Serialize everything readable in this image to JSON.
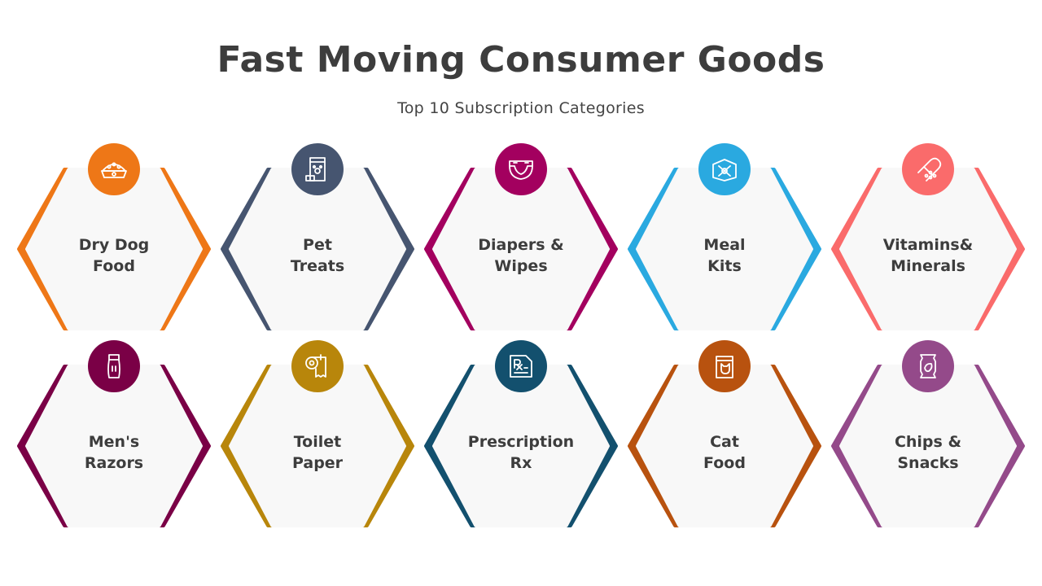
{
  "header": {
    "title": "Fast Moving Consumer Goods",
    "subtitle": "Top 10 Subscription Categories"
  },
  "categories": [
    {
      "line1": "Dry Dog",
      "line2": "Food",
      "color": "#EE7717",
      "icon": "dog-food-bowl-icon"
    },
    {
      "line1": "Pet",
      "line2": "Treats",
      "color": "#465570",
      "icon": "pet-food-bag-icon"
    },
    {
      "line1": "Diapers &",
      "line2": "Wipes",
      "color": "#A3005F",
      "icon": "diaper-icon"
    },
    {
      "line1": "Meal",
      "line2": "Kits",
      "color": "#2AA9E0",
      "icon": "meal-kit-box-icon"
    },
    {
      "line1": "Vitamins&",
      "line2": "Minerals",
      "color": "#FA6B6B",
      "icon": "capsule-pills-icon"
    },
    {
      "line1": "Men's",
      "line2": "Razors",
      "color": "#7A0046",
      "icon": "electric-razor-icon"
    },
    {
      "line1": "Toilet",
      "line2": "Paper",
      "color": "#B8860B",
      "icon": "toilet-paper-roll-icon"
    },
    {
      "line1": "Prescription",
      "line2": "Rx",
      "color": "#13506E",
      "icon": "prescription-rx-icon"
    },
    {
      "line1": "Cat",
      "line2": "Food",
      "color": "#B8520F",
      "icon": "cat-food-bag-icon"
    },
    {
      "line1": "Chips &",
      "line2": "Snacks",
      "color": "#944A8A",
      "icon": "chips-bag-icon"
    }
  ]
}
